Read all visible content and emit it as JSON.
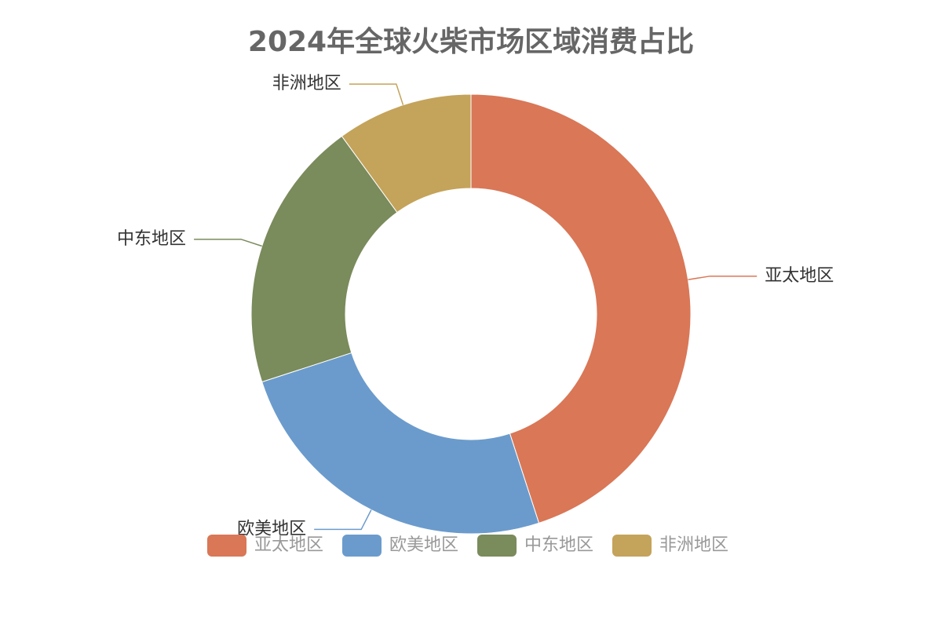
{
  "chart_data": {
    "type": "donut",
    "title": "2024年全球火柴市场区域消费占比",
    "categories": [
      "亚太地区",
      "欧美地区",
      "中东地区",
      "非洲地区"
    ],
    "values": [
      45,
      25,
      20,
      10
    ],
    "colors": [
      "#d97757",
      "#6b9bcc",
      "#7a8b5c",
      "#c4a35a"
    ],
    "legend": "bottom"
  }
}
